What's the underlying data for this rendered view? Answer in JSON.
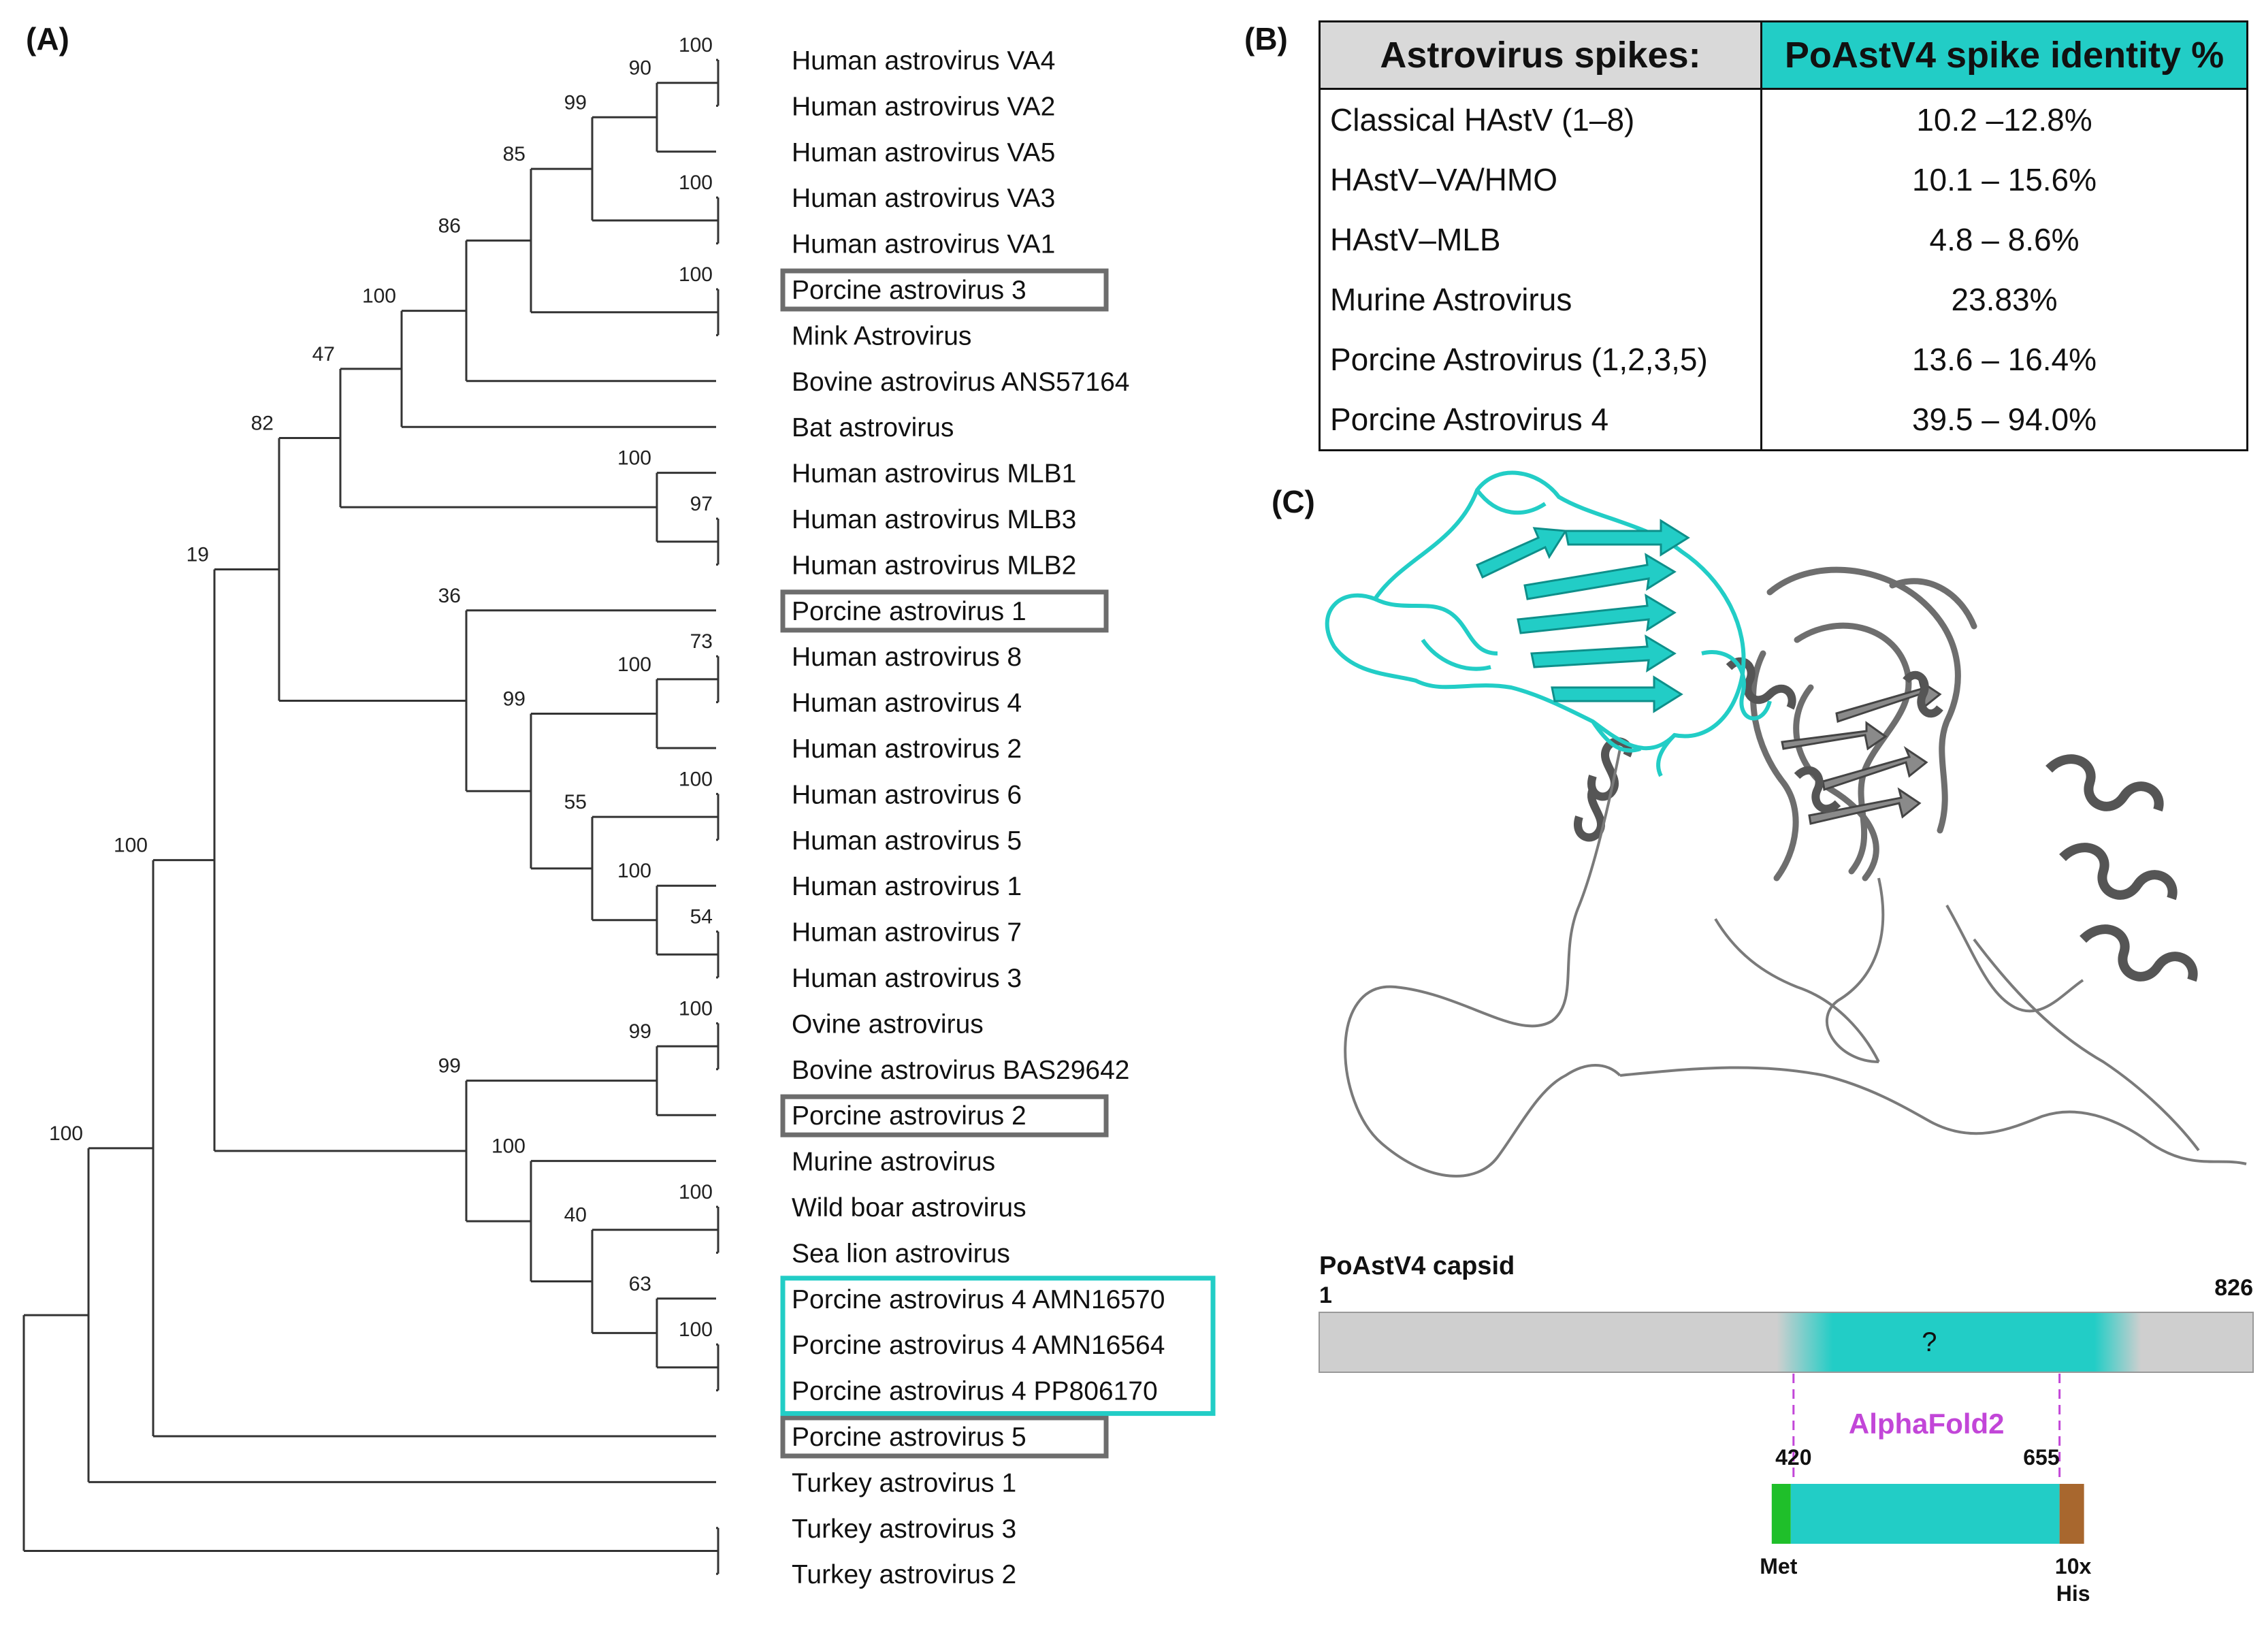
{
  "panels": {
    "a": "(A)",
    "b": "(B)",
    "c": "(C)"
  },
  "tree": {
    "leaves": [
      {
        "name": "Human astrovirus VA4"
      },
      {
        "name": "Human astrovirus VA2"
      },
      {
        "name": "Human astrovirus VA5"
      },
      {
        "name": "Human astrovirus VA3"
      },
      {
        "name": "Human astrovirus VA1"
      },
      {
        "name": "Porcine astrovirus 3",
        "box": "gray"
      },
      {
        "name": "Mink Astrovirus"
      },
      {
        "name": "Bovine astrovirus ANS57164"
      },
      {
        "name": "Bat astrovirus"
      },
      {
        "name": "Human astrovirus MLB1"
      },
      {
        "name": "Human astrovirus MLB3"
      },
      {
        "name": "Human astrovirus MLB2"
      },
      {
        "name": "Porcine astrovirus 1",
        "box": "gray"
      },
      {
        "name": "Human astrovirus 8"
      },
      {
        "name": "Human astrovirus 4"
      },
      {
        "name": "Human astrovirus 2"
      },
      {
        "name": "Human astrovirus 6"
      },
      {
        "name": "Human astrovirus 5"
      },
      {
        "name": "Human astrovirus 1"
      },
      {
        "name": "Human astrovirus 7"
      },
      {
        "name": "Human astrovirus 3"
      },
      {
        "name": "Ovine astrovirus"
      },
      {
        "name": "Bovine astrovirus BAS29642"
      },
      {
        "name": "Porcine astrovirus 2",
        "box": "gray"
      },
      {
        "name": "Murine astrovirus"
      },
      {
        "name": "Wild boar astrovirus"
      },
      {
        "name": "Sea lion astrovirus"
      },
      {
        "name": "Porcine astrovirus 4 AMN16570",
        "box": "teal"
      },
      {
        "name": "Porcine astrovirus 4 AMN16564",
        "box": "teal"
      },
      {
        "name": "Porcine astrovirus 4 PP806170",
        "box": "teal"
      },
      {
        "name": "Porcine astrovirus 5",
        "box": "gray"
      },
      {
        "name": "Turkey astrovirus 1"
      },
      {
        "name": "Turkey astrovirus 3"
      },
      {
        "name": "Turkey astrovirus 2"
      }
    ],
    "bootstraps": [
      "100",
      "90",
      "99",
      "100",
      "85",
      "86",
      "100",
      "100",
      "47",
      "100",
      "97",
      "82",
      "73",
      "36",
      "100",
      "99",
      "100",
      "19",
      "55",
      "100",
      "54",
      "100",
      "99",
      "100",
      "99",
      "100",
      "100",
      "40",
      "100",
      "63",
      "100"
    ]
  },
  "spike_table": {
    "header": [
      "Astrovirus spikes:",
      "PoAstV4 spike identity %"
    ],
    "rows": [
      {
        "name": "Classical HAstV (1–8)",
        "value": "10.2 –12.8%"
      },
      {
        "name": "HAstV–VA/HMO",
        "value": "10.1 – 15.6%"
      },
      {
        "name": "HAstV–MLB",
        "value": "4.8 – 8.6%"
      },
      {
        "name": "Murine Astrovirus",
        "value": "23.83%"
      },
      {
        "name": "Porcine Astrovirus (1,2,3,5)",
        "value": "13.6 – 16.4%"
      },
      {
        "name": "Porcine Astrovirus 4",
        "value": "39.5 – 94.0%"
      }
    ]
  },
  "capsid": {
    "title": "PoAstV4 capsid",
    "start": "1",
    "end": "826",
    "unknown": "?",
    "model": "AlphaFold2",
    "construct_start": "420",
    "construct_end": "655",
    "met": "Met",
    "his_tag": [
      "10x",
      "His"
    ]
  },
  "colors": {
    "teal": "#22cdc6",
    "gray_box": "#6d6d6d",
    "magenta": "#c246d8",
    "met": "#1fbf2a",
    "his": "#a8672e"
  }
}
